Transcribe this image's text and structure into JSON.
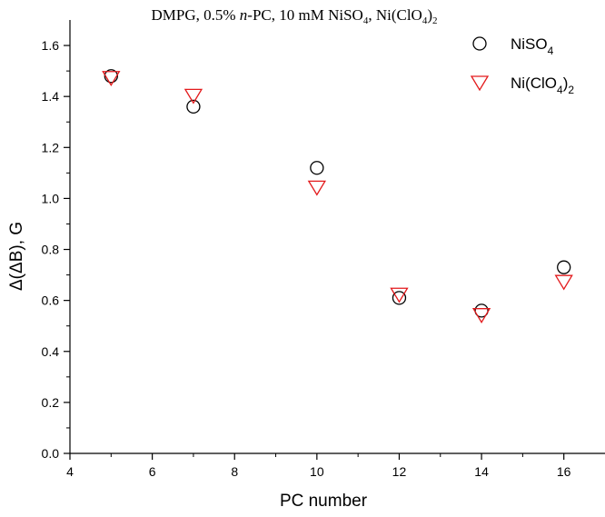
{
  "chart_data": {
    "type": "scatter",
    "title": {
      "part1": "DMPG, 0.5% ",
      "part2_italic": "n",
      "part3": "-PC, 10 mM NiSO",
      "sub1": "4",
      "part4": ", Ni(ClO",
      "sub2": "4",
      "part5": ")",
      "sub3": "2"
    },
    "xlabel": "PC number",
    "ylabel": "Δ(ΔB), G",
    "xlim": [
      4,
      17
    ],
    "ylim": [
      0.0,
      1.7
    ],
    "x_ticks": [
      4,
      6,
      8,
      10,
      12,
      14,
      16
    ],
    "y_ticks": [
      0.0,
      0.2,
      0.4,
      0.6,
      0.8,
      1.0,
      1.2,
      1.4,
      1.6
    ],
    "legend_position": "top-right",
    "series": [
      {
        "name_main": "NiSO",
        "name_sub": "4",
        "marker": "circle",
        "color": "#000000",
        "x": [
          5,
          7,
          10,
          12,
          14,
          16
        ],
        "y": [
          1.48,
          1.36,
          1.12,
          0.61,
          0.56,
          0.73
        ]
      },
      {
        "name_main": "Ni(ClO",
        "name_sub": "4",
        "name_end": ")",
        "name_sub2": "2",
        "marker": "triangle-down",
        "color": "#e31a1c",
        "x": [
          5,
          7,
          10,
          12,
          14,
          16
        ],
        "y": [
          1.48,
          1.41,
          1.05,
          0.63,
          0.55,
          0.68
        ]
      }
    ]
  }
}
